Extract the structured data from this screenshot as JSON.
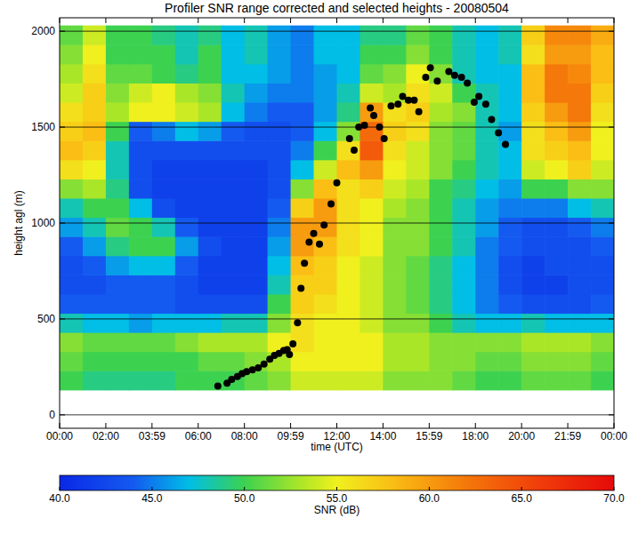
{
  "chart_data": {
    "type": "heatmap",
    "title": "Profiler SNR range corrected and selected heights - 20080504",
    "x_label": "time (UTC)",
    "y_label": "height agl (m)",
    "xlim": [
      0,
      24
    ],
    "xticks": [
      {
        "value": 0,
        "label": "00:00"
      },
      {
        "value": 2,
        "label": "02:00"
      },
      {
        "value": 4,
        "label": "03:59"
      },
      {
        "value": 6,
        "label": "06:00"
      },
      {
        "value": 8,
        "label": "08:00"
      },
      {
        "value": 10,
        "label": "09:59"
      },
      {
        "value": 12,
        "label": "12:00"
      },
      {
        "value": 14,
        "label": "14:00"
      },
      {
        "value": 16,
        "label": "15:59"
      },
      {
        "value": 18,
        "label": "18:00"
      },
      {
        "value": 20,
        "label": "20:00"
      },
      {
        "value": 22,
        "label": "21:59"
      },
      {
        "value": 24,
        "label": "00:00"
      }
    ],
    "ylim": [
      -70,
      2070
    ],
    "yticks": [
      0,
      500,
      1000,
      1500,
      2000
    ],
    "grid": true,
    "cells": {
      "x_bins": [
        0,
        1,
        2,
        3,
        4,
        5,
        6,
        7,
        8,
        9,
        10,
        11,
        12,
        13,
        14,
        15,
        16,
        17,
        18,
        19,
        20,
        21,
        22,
        23,
        24
      ],
      "y_bins": [
        130,
        230,
        330,
        430,
        530,
        630,
        730,
        830,
        930,
        1030,
        1130,
        1230,
        1330,
        1430,
        1530,
        1630,
        1730,
        1830,
        1930,
        2030
      ],
      "values": [
        [
          50,
          49,
          49,
          49,
          49,
          50,
          50,
          50,
          51,
          52,
          54,
          54,
          54,
          54,
          52,
          52,
          52,
          51,
          50,
          50,
          51,
          51,
          51,
          50
        ],
        [
          51,
          50,
          50,
          50,
          50,
          50,
          51,
          51,
          52,
          53,
          55,
          55,
          55,
          55,
          53,
          53,
          52,
          52,
          51,
          51,
          52,
          52,
          52,
          51
        ],
        [
          52,
          51,
          51,
          51,
          51,
          52,
          53,
          53,
          53,
          55,
          56,
          55,
          55,
          55,
          53,
          53,
          52,
          52,
          52,
          52,
          53,
          53,
          53,
          52
        ],
        [
          48,
          47,
          47,
          46,
          47,
          47,
          47,
          48,
          48,
          52,
          56,
          55,
          55,
          54,
          52,
          52,
          50,
          48,
          47,
          47,
          48,
          47,
          47,
          47
        ],
        [
          44,
          44,
          44,
          44,
          44,
          43,
          43,
          43,
          43,
          50,
          57,
          56,
          55,
          54,
          52,
          51,
          49,
          47,
          45,
          44,
          43,
          43,
          43,
          44
        ],
        [
          43,
          43,
          44,
          44,
          44,
          43,
          42,
          42,
          42,
          48,
          57,
          57,
          55,
          54,
          52,
          51,
          49,
          47,
          45,
          43,
          42,
          42,
          43,
          43
        ],
        [
          43,
          44,
          46,
          47,
          47,
          44,
          42,
          42,
          42,
          47,
          58,
          57,
          55,
          54,
          52,
          51,
          49,
          47,
          45,
          43,
          42,
          43,
          43,
          43
        ],
        [
          44,
          46,
          49,
          50,
          50,
          46,
          43,
          42,
          42,
          46,
          60,
          58,
          56,
          55,
          52,
          52,
          50,
          48,
          45,
          44,
          43,
          43,
          43,
          44
        ],
        [
          46,
          48,
          51,
          50,
          48,
          44,
          42,
          42,
          42,
          45,
          60,
          60,
          56,
          55,
          52,
          52,
          50,
          48,
          46,
          44,
          43,
          43,
          44,
          45
        ],
        [
          48,
          50,
          50,
          47,
          43,
          42,
          42,
          42,
          42,
          44,
          57,
          60,
          56,
          55,
          53,
          52,
          50,
          48,
          46,
          45,
          45,
          45,
          47,
          48
        ],
        [
          52,
          53,
          49,
          43,
          42,
          42,
          42,
          42,
          42,
          43,
          52,
          58,
          56,
          57,
          54,
          53,
          50,
          49,
          47,
          46,
          50,
          50,
          52,
          52
        ],
        [
          56,
          55,
          48,
          43,
          42,
          42,
          42,
          42,
          42,
          43,
          47,
          54,
          58,
          60,
          55,
          54,
          52,
          50,
          48,
          47,
          54,
          55,
          57,
          54
        ],
        [
          58,
          57,
          48,
          43,
          43,
          43,
          43,
          43,
          43,
          43,
          45,
          50,
          56,
          64,
          56,
          54,
          52,
          51,
          48,
          47,
          56,
          57,
          58,
          55
        ],
        [
          57,
          58,
          50,
          44,
          45,
          47,
          46,
          44,
          43,
          43,
          44,
          47,
          52,
          63,
          57,
          56,
          52,
          51,
          48,
          46,
          56,
          58,
          60,
          55
        ],
        [
          56,
          57,
          53,
          55,
          55,
          54,
          53,
          47,
          45,
          44,
          44,
          46,
          49,
          60,
          56,
          57,
          53,
          52,
          48,
          47,
          57,
          60,
          62,
          56
        ],
        [
          54,
          57,
          52,
          54,
          55,
          53,
          52,
          48,
          46,
          45,
          45,
          46,
          48,
          54,
          53,
          56,
          54,
          50,
          48,
          47,
          58,
          62,
          62,
          57
        ],
        [
          53,
          56,
          51,
          51,
          50,
          49,
          50,
          47,
          47,
          46,
          45,
          46,
          47,
          51,
          52,
          55,
          52,
          48,
          47,
          47,
          58,
          62,
          61,
          58
        ],
        [
          52,
          55,
          50,
          50,
          50,
          48,
          50,
          47,
          48,
          46,
          45,
          47,
          47,
          50,
          50,
          52,
          50,
          48,
          47,
          48,
          56,
          60,
          60,
          58
        ],
        [
          51,
          54,
          50,
          50,
          49,
          48,
          49,
          47,
          48,
          46,
          45,
          47,
          47,
          49,
          49,
          51,
          50,
          48,
          47,
          48,
          57,
          61,
          61,
          59
        ]
      ]
    },
    "colorbar": {
      "label": "SNR (dB)",
      "range": [
        40,
        70
      ],
      "ticks": [
        {
          "value": 40,
          "label": "40.0"
        },
        {
          "value": 45,
          "label": "45.0"
        },
        {
          "value": 50,
          "label": "50.0"
        },
        {
          "value": 55,
          "label": "55.0"
        },
        {
          "value": 60,
          "label": "60.0"
        },
        {
          "value": 65,
          "label": "65.0"
        },
        {
          "value": 70,
          "label": "70.0"
        }
      ]
    },
    "series": [
      {
        "type": "scatter",
        "color": "#000000",
        "marker": "circle",
        "x": [
          6.85,
          7.25,
          7.45,
          7.7,
          7.9,
          8.1,
          8.35,
          8.6,
          8.85,
          9.1,
          9.3,
          9.5,
          9.7,
          9.85,
          9.95,
          10.1,
          10.3,
          10.45,
          10.6,
          10.8,
          11.0,
          11.25,
          11.45,
          11.75,
          12.0,
          12.55,
          12.75,
          12.95,
          13.2,
          13.45,
          13.6,
          13.85,
          14.05,
          14.35,
          14.65,
          14.85,
          15.1,
          15.35,
          15.55,
          15.85,
          16.05,
          16.35,
          16.85,
          17.1,
          17.4,
          17.65,
          17.95,
          18.15,
          18.45,
          18.7,
          19.0,
          19.3
        ],
        "values": [
          150,
          165,
          185,
          200,
          215,
          225,
          235,
          245,
          265,
          290,
          310,
          320,
          335,
          340,
          315,
          370,
          480,
          660,
          790,
          900,
          945,
          890,
          990,
          1100,
          1210,
          1440,
          1380,
          1500,
          1510,
          1600,
          1560,
          1500,
          1440,
          1610,
          1620,
          1660,
          1640,
          1640,
          1580,
          1760,
          1810,
          1740,
          1790,
          1770,
          1760,
          1730,
          1630,
          1660,
          1620,
          1540,
          1470,
          1410
        ]
      }
    ]
  }
}
